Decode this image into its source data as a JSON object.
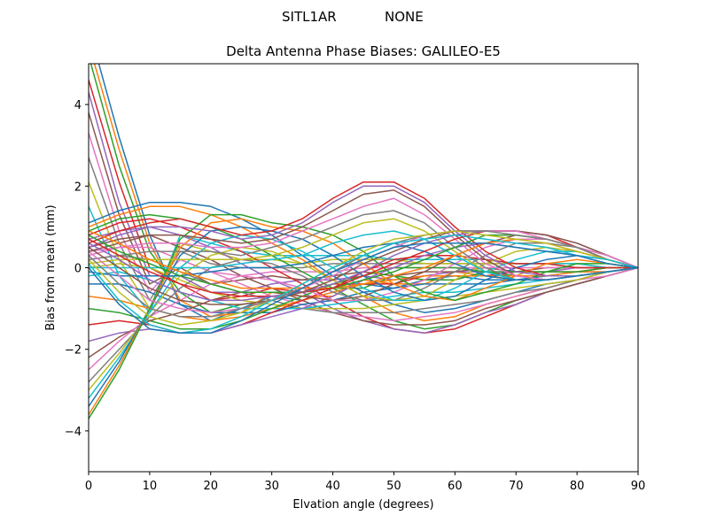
{
  "figure": {
    "suptitle_station": "SITL1AR",
    "suptitle_antenna": "NONE"
  },
  "chart_data": {
    "type": "line",
    "title": "Delta Antenna Phase Biases: GALILEO-E5",
    "xlabel": "Elvation angle (degrees)",
    "ylabel": "Bias from mean (mm)",
    "xlim": [
      0,
      90
    ],
    "ylim": [
      -5,
      5
    ],
    "xticks": [
      0,
      10,
      20,
      30,
      40,
      50,
      60,
      70,
      80,
      90
    ],
    "yticks": [
      -4,
      -2,
      0,
      2,
      4
    ],
    "ytick_labels": [
      "−4",
      "−2",
      "0",
      "2",
      "4"
    ],
    "grid": false,
    "legend": "none",
    "x": [
      0,
      5,
      10,
      15,
      20,
      25,
      30,
      35,
      40,
      45,
      50,
      55,
      60,
      65,
      70,
      75,
      80,
      85,
      90
    ],
    "colors": [
      "#1f77b4",
      "#ff7f0e",
      "#2ca02c",
      "#d62728",
      "#9467bd",
      "#8c564b",
      "#e377c2",
      "#7f7f7f",
      "#bcbd22",
      "#17becf"
    ],
    "series": [
      {
        "values": [
          5.9,
          3.2,
          0.8,
          -0.9,
          -1.3,
          -1.0,
          -0.7,
          -0.8,
          -0.6,
          -0.4,
          -0.5,
          -0.3,
          -0.2,
          -0.3,
          -0.3,
          -0.2,
          -0.1,
          -0.1,
          0
        ]
      },
      {
        "values": [
          5.5,
          2.9,
          0.6,
          -0.8,
          -1.2,
          -1.1,
          -0.6,
          -0.7,
          -0.7,
          -0.3,
          -0.4,
          -0.4,
          -0.1,
          -0.2,
          -0.3,
          -0.3,
          -0.2,
          -0.1,
          0
        ]
      },
      {
        "values": [
          5.2,
          2.5,
          0.4,
          -0.6,
          -1.1,
          -0.9,
          -0.8,
          -0.5,
          -0.5,
          -0.5,
          -0.2,
          -0.3,
          -0.3,
          -0.1,
          -0.2,
          -0.2,
          -0.2,
          -0.1,
          0
        ]
      },
      {
        "values": [
          4.6,
          2.1,
          0.0,
          -0.4,
          -0.8,
          -0.7,
          -0.5,
          -0.6,
          -0.4,
          -0.4,
          -0.4,
          -0.2,
          -0.2,
          -0.2,
          -0.1,
          -0.1,
          -0.1,
          0.0,
          0
        ]
      },
      {
        "values": [
          4.3,
          1.6,
          -0.2,
          -0.2,
          -0.6,
          -0.6,
          -0.4,
          -0.3,
          -0.3,
          -0.2,
          -0.3,
          -0.2,
          -0.1,
          -0.1,
          -0.1,
          -0.1,
          0.0,
          0.0,
          0
        ]
      },
      {
        "values": [
          3.8,
          1.3,
          -0.4,
          0.0,
          -0.4,
          -0.3,
          -0.2,
          -0.3,
          -0.2,
          -0.1,
          -0.2,
          -0.1,
          -0.1,
          0.0,
          -0.1,
          0.0,
          0.0,
          0.0,
          0
        ]
      },
      {
        "values": [
          3.3,
          0.9,
          -0.6,
          0.2,
          -0.1,
          -0.2,
          -0.1,
          -0.1,
          -0.1,
          0.0,
          0.0,
          0.0,
          0.0,
          0.0,
          0.0,
          0.0,
          0.0,
          0.0,
          0
        ]
      },
      {
        "values": [
          2.7,
          0.6,
          -0.8,
          0.4,
          0.1,
          0.0,
          0.0,
          0.0,
          0.1,
          0.1,
          0.1,
          0.1,
          0.1,
          0.1,
          0.1,
          0.1,
          0.0,
          0.0,
          0
        ]
      },
      {
        "values": [
          2.1,
          0.2,
          -1.0,
          0.6,
          0.4,
          0.2,
          0.2,
          0.1,
          0.2,
          0.2,
          0.2,
          0.1,
          0.1,
          0.1,
          0.1,
          0.1,
          0.1,
          0.0,
          0
        ]
      },
      {
        "values": [
          1.5,
          -0.2,
          -1.1,
          0.8,
          0.6,
          0.4,
          0.3,
          0.3,
          0.3,
          0.3,
          0.2,
          0.2,
          0.2,
          0.2,
          0.1,
          0.1,
          0.1,
          0.0,
          0
        ]
      },
      {
        "values": [
          1.1,
          1.4,
          1.6,
          1.6,
          1.5,
          1.2,
          0.8,
          0.3,
          -0.2,
          -0.6,
          -0.9,
          -1.1,
          -1.0,
          -0.8,
          -0.6,
          -0.4,
          -0.3,
          -0.1,
          0
        ]
      },
      {
        "values": [
          1.0,
          1.3,
          1.5,
          1.5,
          1.3,
          1.0,
          0.6,
          0.2,
          -0.3,
          -0.7,
          -1.1,
          -1.3,
          -1.2,
          -0.9,
          -0.7,
          -0.5,
          -0.3,
          -0.1,
          0
        ]
      },
      {
        "values": [
          0.9,
          1.2,
          1.3,
          1.2,
          1.0,
          0.7,
          0.3,
          -0.1,
          -0.5,
          -0.9,
          -1.3,
          -1.5,
          -1.4,
          -1.1,
          -0.8,
          -0.6,
          -0.4,
          -0.2,
          0
        ]
      },
      {
        "values": [
          0.8,
          1.1,
          1.2,
          1.0,
          0.7,
          0.4,
          0.0,
          -0.4,
          -0.8,
          -1.2,
          -1.5,
          -1.6,
          -1.5,
          -1.2,
          -0.9,
          -0.6,
          -0.4,
          -0.2,
          0
        ]
      },
      {
        "values": [
          0.7,
          0.9,
          1.0,
          0.8,
          0.5,
          0.1,
          -0.3,
          -0.6,
          -1.0,
          -1.3,
          -1.5,
          -1.6,
          -1.4,
          -1.1,
          -0.9,
          -0.6,
          -0.4,
          -0.2,
          0
        ]
      },
      {
        "values": [
          0.5,
          0.7,
          0.8,
          0.5,
          0.2,
          -0.2,
          -0.5,
          -0.8,
          -1.1,
          -1.3,
          -1.4,
          -1.4,
          -1.3,
          -1.0,
          -0.8,
          -0.6,
          -0.4,
          -0.2,
          0
        ]
      },
      {
        "values": [
          0.4,
          0.5,
          0.5,
          0.2,
          -0.1,
          -0.4,
          -0.7,
          -0.9,
          -1.1,
          -1.2,
          -1.3,
          -1.2,
          -1.1,
          -0.9,
          -0.7,
          -0.5,
          -0.3,
          -0.2,
          0
        ]
      },
      {
        "values": [
          0.2,
          0.3,
          0.2,
          -0.1,
          -0.4,
          -0.6,
          -0.8,
          -1.0,
          -1.1,
          -1.1,
          -1.1,
          -1.0,
          -0.9,
          -0.8,
          -0.6,
          -0.5,
          -0.3,
          -0.1,
          0
        ]
      },
      {
        "values": [
          0.0,
          0.1,
          0.0,
          -0.3,
          -0.6,
          -0.8,
          -0.9,
          -1.0,
          -1.0,
          -1.0,
          -0.9,
          -0.8,
          -0.7,
          -0.6,
          -0.5,
          -0.4,
          -0.3,
          -0.1,
          0
        ]
      },
      {
        "values": [
          -0.2,
          -0.1,
          -0.3,
          -0.6,
          -0.8,
          -1.0,
          -1.0,
          -1.0,
          -0.9,
          -0.8,
          -0.7,
          -0.6,
          -0.6,
          -0.5,
          -0.4,
          -0.3,
          -0.2,
          -0.1,
          0
        ]
      },
      {
        "values": [
          -0.4,
          -0.4,
          -0.6,
          -0.9,
          -1.1,
          -1.1,
          -1.1,
          -0.9,
          -0.8,
          -0.6,
          -0.5,
          -0.4,
          -0.4,
          -0.4,
          -0.3,
          -0.3,
          -0.2,
          -0.1,
          0
        ]
      },
      {
        "values": [
          -0.7,
          -0.8,
          -1.0,
          -1.2,
          -1.3,
          -1.2,
          -1.0,
          -0.8,
          -0.6,
          -0.4,
          -0.3,
          -0.2,
          -0.2,
          -0.2,
          -0.2,
          -0.2,
          -0.1,
          -0.1,
          0
        ]
      },
      {
        "values": [
          -1.0,
          -1.1,
          -1.3,
          -1.5,
          -1.5,
          -1.3,
          -1.0,
          -0.7,
          -0.4,
          -0.2,
          0.0,
          0.0,
          0.0,
          -0.1,
          -0.1,
          -0.1,
          -0.1,
          0.0,
          0
        ]
      },
      {
        "values": [
          -1.4,
          -1.3,
          -1.4,
          -1.6,
          -1.6,
          -1.4,
          -1.1,
          -0.8,
          -0.5,
          -0.1,
          0.2,
          0.3,
          0.3,
          0.2,
          0.1,
          0.1,
          0.0,
          0.0,
          0
        ]
      },
      {
        "values": [
          -1.8,
          -1.6,
          -1.5,
          -1.6,
          -1.6,
          -1.4,
          -1.2,
          -1.0,
          -0.7,
          -0.3,
          0.0,
          0.3,
          0.5,
          0.6,
          0.5,
          0.4,
          0.3,
          0.1,
          0
        ]
      },
      {
        "values": [
          -2.2,
          -1.7,
          -1.3,
          -1.1,
          -0.8,
          -0.6,
          -0.6,
          -0.7,
          -0.8,
          -0.7,
          -0.4,
          -0.1,
          0.3,
          0.6,
          0.8,
          0.7,
          0.5,
          0.2,
          0
        ]
      },
      {
        "values": [
          -2.5,
          -1.8,
          -1.2,
          -0.8,
          -0.4,
          -0.2,
          -0.3,
          -0.5,
          -0.8,
          -0.8,
          -0.6,
          -0.3,
          0.1,
          0.5,
          0.7,
          0.7,
          0.5,
          0.3,
          0
        ]
      },
      {
        "values": [
          -2.8,
          -2.0,
          -1.2,
          -0.5,
          0.0,
          0.2,
          0.1,
          -0.2,
          -0.6,
          -0.8,
          -0.8,
          -0.5,
          -0.1,
          0.3,
          0.6,
          0.6,
          0.5,
          0.3,
          0
        ]
      },
      {
        "values": [
          -3.0,
          -2.1,
          -1.1,
          -0.2,
          0.3,
          0.5,
          0.4,
          0.1,
          -0.3,
          -0.7,
          -0.8,
          -0.7,
          -0.3,
          0.1,
          0.4,
          0.5,
          0.4,
          0.2,
          0
        ]
      },
      {
        "values": [
          -3.2,
          -2.2,
          -1.1,
          0.0,
          0.6,
          0.8,
          0.7,
          0.4,
          0.0,
          -0.5,
          -0.8,
          -0.8,
          -0.5,
          -0.1,
          0.2,
          0.4,
          0.4,
          0.2,
          0
        ]
      },
      {
        "values": [
          -3.4,
          -2.3,
          -1.0,
          0.3,
          0.9,
          1.0,
          0.9,
          0.7,
          0.3,
          -0.2,
          -0.6,
          -0.8,
          -0.7,
          -0.3,
          0.0,
          0.2,
          0.3,
          0.2,
          0
        ]
      },
      {
        "values": [
          -3.6,
          -2.4,
          -1.0,
          0.5,
          1.1,
          1.2,
          1.0,
          0.9,
          0.6,
          0.1,
          -0.4,
          -0.7,
          -0.8,
          -0.5,
          -0.2,
          0.1,
          0.2,
          0.1,
          0
        ]
      },
      {
        "values": [
          -3.7,
          -2.5,
          -1.0,
          0.7,
          1.3,
          1.3,
          1.1,
          1.0,
          0.8,
          0.4,
          -0.2,
          -0.6,
          -0.8,
          -0.6,
          -0.4,
          -0.1,
          0.1,
          0.1,
          0
        ]
      },
      {
        "values": [
          0.6,
          0.9,
          1.1,
          1.2,
          1.0,
          0.8,
          0.9,
          1.2,
          1.7,
          2.1,
          2.1,
          1.7,
          1.0,
          0.4,
          0.0,
          -0.2,
          -0.2,
          -0.1,
          0
        ]
      },
      {
        "values": [
          0.5,
          0.8,
          1.0,
          1.0,
          0.9,
          0.7,
          0.8,
          1.1,
          1.6,
          2.0,
          2.0,
          1.6,
          0.9,
          0.3,
          -0.1,
          -0.2,
          -0.2,
          -0.1,
          0
        ]
      },
      {
        "values": [
          0.4,
          0.6,
          0.8,
          0.8,
          0.7,
          0.6,
          0.7,
          1.0,
          1.4,
          1.8,
          1.9,
          1.5,
          0.8,
          0.2,
          -0.2,
          -0.3,
          -0.2,
          -0.1,
          0
        ]
      },
      {
        "values": [
          0.3,
          0.5,
          0.6,
          0.6,
          0.5,
          0.5,
          0.6,
          0.9,
          1.2,
          1.5,
          1.7,
          1.3,
          0.7,
          0.1,
          -0.2,
          -0.3,
          -0.2,
          -0.1,
          0
        ]
      },
      {
        "values": [
          0.2,
          0.3,
          0.4,
          0.4,
          0.4,
          0.3,
          0.5,
          0.7,
          1.0,
          1.3,
          1.4,
          1.1,
          0.5,
          0.0,
          -0.3,
          -0.3,
          -0.2,
          -0.1,
          0
        ]
      },
      {
        "values": [
          0.1,
          0.2,
          0.2,
          0.2,
          0.2,
          0.2,
          0.3,
          0.5,
          0.8,
          1.1,
          1.2,
          0.9,
          0.4,
          -0.1,
          -0.3,
          -0.3,
          -0.2,
          -0.1,
          0
        ]
      },
      {
        "values": [
          0.0,
          0.0,
          0.0,
          0.0,
          0.0,
          0.1,
          0.2,
          0.3,
          0.6,
          0.8,
          0.9,
          0.7,
          0.3,
          -0.1,
          -0.3,
          -0.3,
          -0.2,
          -0.1,
          0
        ]
      },
      {
        "values": [
          -0.1,
          -0.2,
          -0.2,
          -0.2,
          -0.1,
          0.0,
          0.0,
          0.1,
          0.3,
          0.5,
          0.6,
          0.4,
          0.1,
          -0.2,
          -0.3,
          -0.3,
          -0.2,
          -0.1,
          0
        ]
      },
      {
        "values": [
          0.9,
          0.6,
          0.2,
          -0.1,
          -0.3,
          -0.5,
          -0.5,
          -0.5,
          -0.5,
          -0.4,
          -0.2,
          0.0,
          0.3,
          0.6,
          0.7,
          0.6,
          0.4,
          0.2,
          0
        ]
      },
      {
        "values": [
          0.8,
          0.4,
          0.1,
          -0.2,
          -0.4,
          -0.6,
          -0.6,
          -0.6,
          -0.5,
          -0.3,
          -0.1,
          0.2,
          0.5,
          0.8,
          0.8,
          0.7,
          0.5,
          0.2,
          0
        ]
      },
      {
        "values": [
          0.7,
          0.3,
          -0.1,
          -0.4,
          -0.6,
          -0.7,
          -0.7,
          -0.6,
          -0.5,
          -0.2,
          0.1,
          0.4,
          0.7,
          0.9,
          0.9,
          0.8,
          0.5,
          0.2,
          0
        ]
      },
      {
        "values": [
          0.6,
          0.2,
          -0.3,
          -0.6,
          -0.8,
          -0.8,
          -0.7,
          -0.6,
          -0.4,
          -0.1,
          0.3,
          0.6,
          0.8,
          0.9,
          0.9,
          0.8,
          0.6,
          0.3,
          0
        ]
      },
      {
        "values": [
          0.5,
          0.0,
          -0.5,
          -0.8,
          -0.9,
          -0.9,
          -0.8,
          -0.6,
          -0.3,
          0.1,
          0.4,
          0.7,
          0.9,
          0.9,
          0.9,
          0.8,
          0.6,
          0.3,
          0
        ]
      },
      {
        "values": [
          0.4,
          -0.2,
          -0.8,
          -1.0,
          -1.1,
          -1.0,
          -0.8,
          -0.5,
          -0.2,
          0.2,
          0.5,
          0.8,
          0.9,
          0.9,
          0.9,
          0.7,
          0.5,
          0.3,
          0
        ]
      },
      {
        "values": [
          0.3,
          -0.4,
          -1.0,
          -1.2,
          -1.2,
          -1.0,
          -0.8,
          -0.5,
          -0.1,
          0.3,
          0.6,
          0.8,
          0.9,
          0.9,
          0.8,
          0.7,
          0.5,
          0.2,
          0
        ]
      },
      {
        "values": [
          0.2,
          -0.6,
          -1.2,
          -1.4,
          -1.3,
          -1.1,
          -0.8,
          -0.4,
          0.0,
          0.4,
          0.7,
          0.8,
          0.9,
          0.8,
          0.7,
          0.6,
          0.4,
          0.2,
          0
        ]
      },
      {
        "values": [
          0.1,
          -0.8,
          -1.4,
          -1.6,
          -1.5,
          -1.2,
          -0.8,
          -0.4,
          0.0,
          0.3,
          0.6,
          0.7,
          0.8,
          0.7,
          0.6,
          0.5,
          0.3,
          0.2,
          0
        ]
      },
      {
        "values": [
          0.0,
          -0.9,
          -1.5,
          -1.6,
          -1.6,
          -1.3,
          -0.9,
          -0.5,
          -0.1,
          0.2,
          0.5,
          0.6,
          0.6,
          0.6,
          0.5,
          0.4,
          0.3,
          0.1,
          0
        ]
      }
    ]
  }
}
